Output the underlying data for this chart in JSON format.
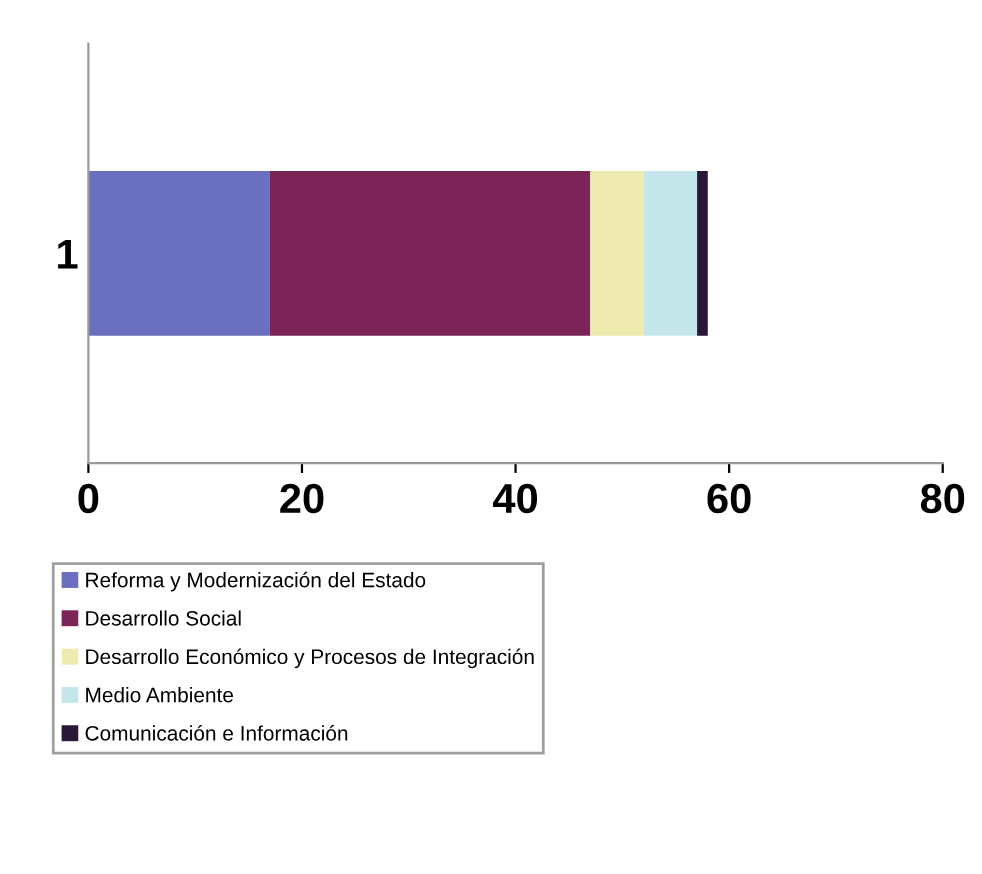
{
  "chart_data": {
    "type": "bar",
    "orientation": "horizontal",
    "stacked": true,
    "categories": [
      "1"
    ],
    "series": [
      {
        "name": "Reforma y Modernización del Estado",
        "color": "#6a6fc0",
        "values": [
          17
        ]
      },
      {
        "name": "Desarrollo Social",
        "color": "#7a2458",
        "values": [
          30
        ]
      },
      {
        "name": "Desarrollo Económico y Procesos de Integración",
        "color": "#eeeab0",
        "values": [
          5
        ]
      },
      {
        "name": "Medio Ambiente",
        "color": "#c4e6ea",
        "values": [
          5
        ]
      },
      {
        "name": "Comunicación e Información",
        "color": "#2a1638",
        "values": [
          1
        ]
      }
    ],
    "xlim": [
      0,
      80
    ],
    "xticks": [
      0,
      20,
      40,
      60,
      80
    ],
    "grid": false,
    "legend": "bottom"
  }
}
